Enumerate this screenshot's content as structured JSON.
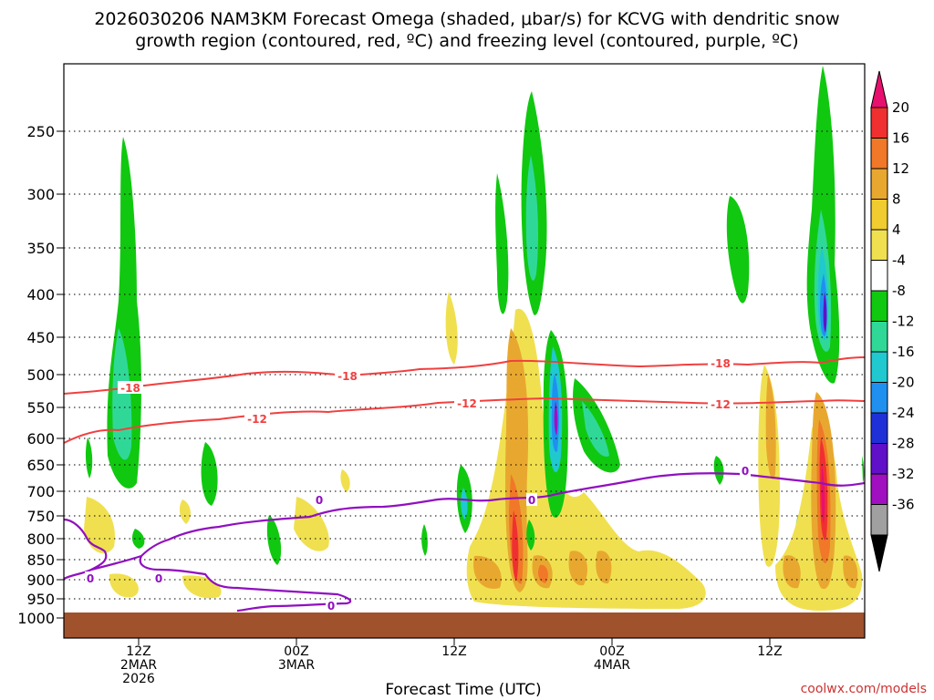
{
  "chart_data": {
    "type": "heatmap",
    "title_line1": "2026030206 NAM3KM Forecast Omega (shaded, μbar/s) for KCVG with dendritic snow",
    "title_line2": "growth region (contoured, red, ºC) and freezing level (contoured, purple, ºC)",
    "xlabel": "Forecast Time (UTC)",
    "credit": "coolwx.com/models",
    "x_range_hours": [
      -9,
      90
    ],
    "y_axis": {
      "label": "",
      "ticks": [
        "250",
        "300",
        "350",
        "400",
        "450",
        "500",
        "550",
        "600",
        "650",
        "700",
        "750",
        "800",
        "850",
        "900",
        "950",
        "1000"
      ],
      "tick_values": [
        250,
        300,
        350,
        400,
        450,
        500,
        550,
        600,
        650,
        700,
        750,
        800,
        850,
        900,
        950,
        1000
      ]
    },
    "x_ticks": [
      {
        "hour": 0,
        "line1": "12Z",
        "line2": "2MAR",
        "line3": "2026"
      },
      {
        "hour": 20,
        "line1": "00Z",
        "line2": "3MAR",
        "line3": ""
      },
      {
        "hour": 40,
        "line1": "12Z",
        "line2": "",
        "line3": ""
      },
      {
        "hour": 60,
        "line1": "00Z",
        "line2": "4MAR",
        "line3": ""
      },
      {
        "hour": 80,
        "line1": "12Z",
        "line2": "",
        "line3": ""
      }
    ],
    "colorbar": {
      "labels": [
        "20",
        "16",
        "12",
        "8",
        "4",
        "-4",
        "-8",
        "-12",
        "-16",
        "-20",
        "-24",
        "-28",
        "-32",
        "-36"
      ],
      "colors": [
        "#e8106e",
        "#f03030",
        "#f07828",
        "#e8a830",
        "#f0cc30",
        "#f0e050",
        "#ffffff",
        "#10c810",
        "#30d898",
        "#20c8d0",
        "#2090f0",
        "#2030d8",
        "#6010c8",
        "#a010c0",
        "#a0a0a0",
        "#000000"
      ]
    },
    "contour_labels": [
      {
        "text": "-18",
        "color": "#f04040"
      },
      {
        "text": "-18",
        "color": "#f04040"
      },
      {
        "text": "-18",
        "color": "#f04040"
      },
      {
        "text": "-12",
        "color": "#f04040"
      },
      {
        "text": "-12",
        "color": "#f04040"
      },
      {
        "text": "-12",
        "color": "#f04040"
      },
      {
        "text": "0",
        "color": "#9010c0"
      },
      {
        "text": "0",
        "color": "#9010c0"
      },
      {
        "text": "0",
        "color": "#9010c0"
      },
      {
        "text": "0",
        "color": "#9010c0"
      },
      {
        "text": "0",
        "color": "#9010c0"
      },
      {
        "text": "0",
        "color": "#9010c0"
      }
    ]
  }
}
